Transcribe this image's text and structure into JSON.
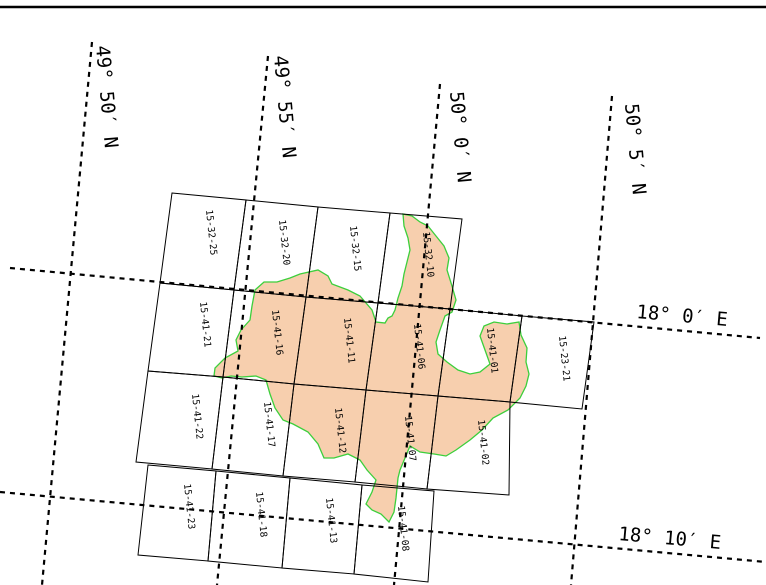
{
  "colors": {
    "area_fill": "#f7cfae",
    "boundary_stroke": "#3ccf3c",
    "lines": "#000000",
    "background": "#ffffff"
  },
  "graticule": {
    "latitude_labels": [
      "49° 50′ N",
      "49° 55′ N",
      "50° 0′ N",
      "50° 5′ N"
    ],
    "longitude_labels": [
      "18° 0′ E",
      "18° 10′ E"
    ]
  },
  "map_sheets": [
    "15-32-25",
    "15-32-20",
    "15-32-15",
    "15-32-10",
    "15-41-21",
    "15-41-16",
    "15-41-11",
    "15-41-06",
    "15-41-01",
    "15-23-21",
    "15-41-22",
    "15-41-17",
    "15-41-12",
    "15-41-07",
    "15-41-02",
    "15-41-23",
    "15-41-18",
    "15-41-13",
    "15-41-08"
  ]
}
